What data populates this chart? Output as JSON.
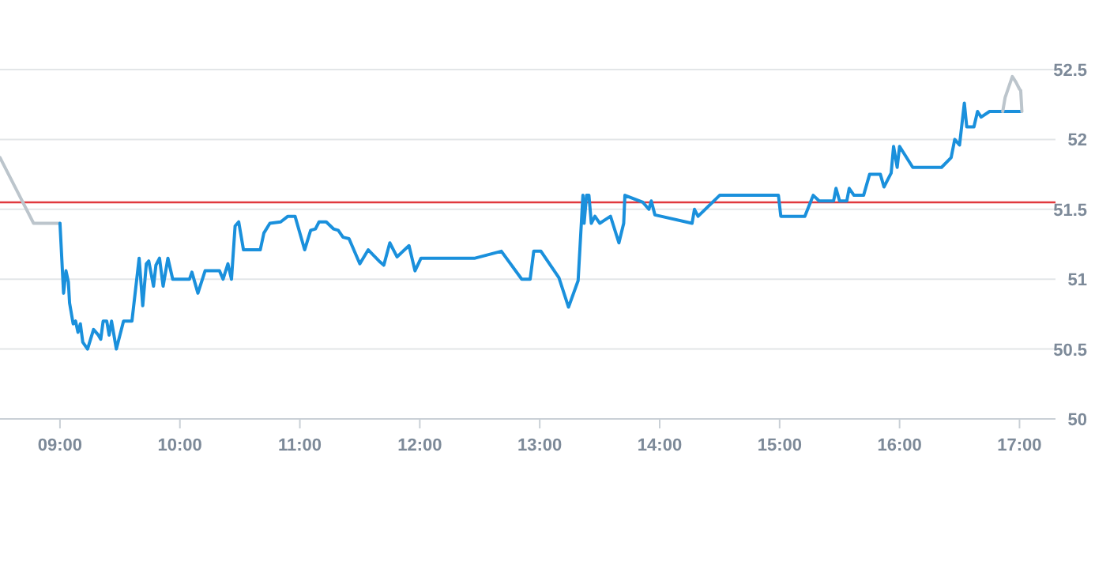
{
  "chart_data": {
    "type": "line",
    "xlim": [
      8.5,
      17.3
    ],
    "ylim": [
      50,
      52.5
    ],
    "xticks": [
      {
        "value": 9,
        "label": "09:00"
      },
      {
        "value": 10,
        "label": "10:00"
      },
      {
        "value": 11,
        "label": "11:00"
      },
      {
        "value": 12,
        "label": "12:00"
      },
      {
        "value": 13,
        "label": "13:00"
      },
      {
        "value": 14,
        "label": "14:00"
      },
      {
        "value": 15,
        "label": "15:00"
      },
      {
        "value": 16,
        "label": "16:00"
      },
      {
        "value": 17,
        "label": "17:00"
      }
    ],
    "yticks": [
      50,
      50.5,
      51,
      51.5,
      52,
      52.5
    ],
    "grid": "y",
    "marker": "none",
    "line_style": "solid",
    "ref_lines": [
      {
        "axis": "y",
        "value": 51.55,
        "color": "#e0393e"
      }
    ],
    "series": [
      {
        "color": "#bcc5cc",
        "x": [
          8.5,
          8.78,
          9.0
        ],
        "values": [
          51.87,
          51.4,
          51.4
        ]
      },
      {
        "color": "#1a90dc",
        "x": [
          9.0,
          9.03,
          9.05,
          9.07,
          9.08,
          9.11,
          9.13,
          9.15,
          9.17,
          9.19,
          9.23,
          9.28,
          9.32,
          9.34,
          9.36,
          9.39,
          9.41,
          9.43,
          9.47,
          9.53,
          9.6,
          9.66,
          9.69,
          9.72,
          9.74,
          9.78,
          9.8,
          9.83,
          9.86,
          9.9,
          9.94,
          10.08,
          10.1,
          10.15,
          10.21,
          10.33,
          10.36,
          10.4,
          10.43,
          10.46,
          10.49,
          10.53,
          10.67,
          10.7,
          10.75,
          10.84,
          10.9,
          10.96,
          11.04,
          11.09,
          11.13,
          11.16,
          11.22,
          11.28,
          11.32,
          11.36,
          11.41,
          11.5,
          11.57,
          11.66,
          11.7,
          11.75,
          11.81,
          11.91,
          11.96,
          12.01,
          12.46,
          12.68,
          12.85,
          12.92,
          12.95,
          13.01,
          13.16,
          13.24,
          13.32,
          13.36,
          13.37,
          13.39,
          13.41,
          13.43,
          13.46,
          13.5,
          13.59,
          13.66,
          13.7,
          13.71,
          13.86,
          13.91,
          13.93,
          13.96,
          14.27,
          14.29,
          14.32,
          14.5,
          14.99,
          15.01,
          15.21,
          15.28,
          15.33,
          15.45,
          15.47,
          15.5,
          15.56,
          15.58,
          15.62,
          15.7,
          15.75,
          15.84,
          15.87,
          15.93,
          15.95,
          15.98,
          16.0,
          16.11,
          16.35,
          16.43,
          16.46,
          16.5,
          16.54,
          16.56,
          16.62,
          16.65,
          16.68,
          16.75,
          17.01
        ],
        "values": [
          51.4,
          50.9,
          51.06,
          50.98,
          50.83,
          50.68,
          50.7,
          50.62,
          50.68,
          50.55,
          50.5,
          50.64,
          50.6,
          50.57,
          50.7,
          50.7,
          50.6,
          50.7,
          50.5,
          50.7,
          50.7,
          51.15,
          50.81,
          51.11,
          51.13,
          50.95,
          51.1,
          51.15,
          50.95,
          51.15,
          51.0,
          51.0,
          51.05,
          50.9,
          51.06,
          51.06,
          51.0,
          51.11,
          51.0,
          51.38,
          51.41,
          51.21,
          51.21,
          51.33,
          51.4,
          51.41,
          51.45,
          51.45,
          51.21,
          51.35,
          51.36,
          51.41,
          51.41,
          51.36,
          51.35,
          51.3,
          51.29,
          51.11,
          51.21,
          51.13,
          51.1,
          51.26,
          51.16,
          51.24,
          51.06,
          51.15,
          51.15,
          51.2,
          51.0,
          51.0,
          51.2,
          51.2,
          51.01,
          50.8,
          50.99,
          51.6,
          51.4,
          51.6,
          51.6,
          51.4,
          51.45,
          51.4,
          51.45,
          51.26,
          51.4,
          51.6,
          51.55,
          51.5,
          51.56,
          51.46,
          51.4,
          51.5,
          51.45,
          51.6,
          51.6,
          51.45,
          51.45,
          51.6,
          51.56,
          51.56,
          51.65,
          51.56,
          51.56,
          51.65,
          51.6,
          51.6,
          51.75,
          51.75,
          51.66,
          51.76,
          51.95,
          51.8,
          51.95,
          51.8,
          51.8,
          51.87,
          52.0,
          51.96,
          52.26,
          52.09,
          52.09,
          52.2,
          52.16,
          52.2,
          52.2
        ]
      },
      {
        "color": "#bcc5cc",
        "x": [
          16.86,
          16.88,
          16.94,
          16.97,
          17.0,
          17.01,
          17.02
        ],
        "values": [
          52.2,
          52.3,
          52.45,
          52.41,
          52.36,
          52.35,
          52.2
        ]
      }
    ]
  }
}
